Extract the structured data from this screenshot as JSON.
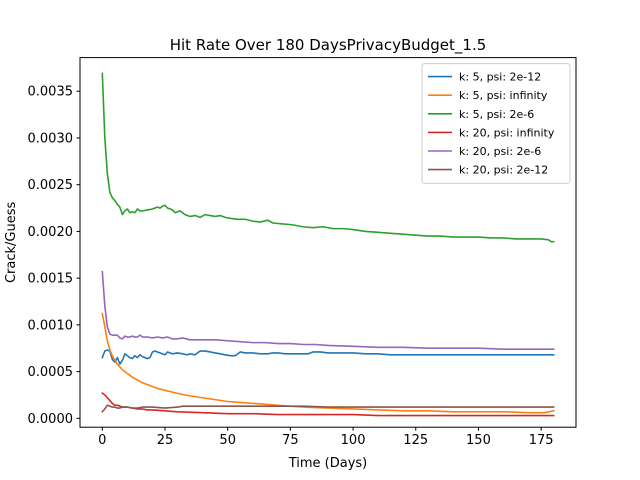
{
  "chart_data": {
    "type": "line",
    "title": "Hit Rate Over 180 DaysPrivacyBudget_1.5",
    "xlabel": "Time (Days)",
    "ylabel": "Crack/Guess",
    "xlim": [
      -8.9,
      188.9
    ],
    "ylim": [
      -9.5e-05,
      0.00386
    ],
    "xticks": [
      0,
      25,
      50,
      75,
      100,
      125,
      150,
      175
    ],
    "xtick_labels": [
      "0",
      "25",
      "50",
      "75",
      "100",
      "125",
      "150",
      "175"
    ],
    "yticks": [
      0.0,
      0.0005,
      0.001,
      0.0015,
      0.002,
      0.0025,
      0.003,
      0.0035
    ],
    "ytick_labels": [
      "0.0000",
      "0.0005",
      "0.0010",
      "0.0015",
      "0.0020",
      "0.0025",
      "0.0030",
      "0.0035"
    ],
    "grid": false,
    "legend_position": "top-right",
    "series": [
      {
        "name": "k: 5, psi: 2e-12",
        "color": "#1f77b4",
        "points": [
          [
            0,
            0.00065
          ],
          [
            1,
            0.00072
          ],
          [
            2,
            0.00073
          ],
          [
            3,
            0.00072
          ],
          [
            4,
            0.00063
          ],
          [
            5,
            0.0006
          ],
          [
            6,
            0.00065
          ],
          [
            7,
            0.00058
          ],
          [
            8,
            0.00062
          ],
          [
            9,
            0.00069
          ],
          [
            10,
            0.00067
          ],
          [
            11,
            0.00065
          ],
          [
            12,
            0.00064
          ],
          [
            13,
            0.00067
          ],
          [
            14,
            0.00065
          ],
          [
            15,
            0.00068
          ],
          [
            16,
            0.00066
          ],
          [
            17,
            0.00065
          ],
          [
            18,
            0.00064
          ],
          [
            19,
            0.00065
          ],
          [
            20,
            0.00071
          ],
          [
            21,
            0.00072
          ],
          [
            22,
            0.00071
          ],
          [
            23,
            0.0007
          ],
          [
            24,
            0.00069
          ],
          [
            25,
            0.00068
          ],
          [
            26,
            0.00071
          ],
          [
            27,
            0.0007
          ],
          [
            28,
            0.00069
          ],
          [
            30,
            0.0007
          ],
          [
            32,
            0.00069
          ],
          [
            34,
            0.00068
          ],
          [
            35,
            0.00069
          ],
          [
            37,
            0.00068
          ],
          [
            39,
            0.00072
          ],
          [
            41,
            0.00072
          ],
          [
            43,
            0.00071
          ],
          [
            45,
            0.0007
          ],
          [
            47,
            0.00069
          ],
          [
            49,
            0.00068
          ],
          [
            51,
            0.00067
          ],
          [
            53,
            0.00067
          ],
          [
            55,
            0.00071
          ],
          [
            57,
            0.0007
          ],
          [
            60,
            0.0007
          ],
          [
            63,
            0.00069
          ],
          [
            66,
            0.00069
          ],
          [
            68,
            0.0007
          ],
          [
            70,
            0.0007
          ],
          [
            73,
            0.00069
          ],
          [
            76,
            0.00069
          ],
          [
            79,
            0.00069
          ],
          [
            82,
            0.00069
          ],
          [
            84,
            0.00071
          ],
          [
            87,
            0.00071
          ],
          [
            90,
            0.0007
          ],
          [
            95,
            0.0007
          ],
          [
            100,
            0.0007
          ],
          [
            105,
            0.00069
          ],
          [
            110,
            0.00069
          ],
          [
            115,
            0.00068
          ],
          [
            120,
            0.00068
          ],
          [
            125,
            0.00068
          ],
          [
            130,
            0.00068
          ],
          [
            140,
            0.00068
          ],
          [
            150,
            0.00068
          ],
          [
            160,
            0.00068
          ],
          [
            170,
            0.00068
          ],
          [
            180,
            0.00068
          ]
        ]
      },
      {
        "name": "k: 5, psi: infinity",
        "color": "#ff7f0e",
        "points": [
          [
            0,
            0.00112
          ],
          [
            1,
            0.00098
          ],
          [
            2,
            0.00083
          ],
          [
            3,
            0.00073
          ],
          [
            4,
            0.00067
          ],
          [
            5,
            0.00062
          ],
          [
            6,
            0.00058
          ],
          [
            7,
            0.00055
          ],
          [
            8,
            0.00052
          ],
          [
            10,
            0.00048
          ],
          [
            12,
            0.00044
          ],
          [
            14,
            0.00041
          ],
          [
            16,
            0.00038
          ],
          [
            18,
            0.00036
          ],
          [
            20,
            0.00034
          ],
          [
            22,
            0.00032
          ],
          [
            25,
            0.0003
          ],
          [
            28,
            0.00028
          ],
          [
            31,
            0.00026
          ],
          [
            35,
            0.00024
          ],
          [
            40,
            0.00022
          ],
          [
            45,
            0.0002
          ],
          [
            50,
            0.00018
          ],
          [
            55,
            0.00017
          ],
          [
            60,
            0.00016
          ],
          [
            65,
            0.00015
          ],
          [
            70,
            0.00014
          ],
          [
            75,
            0.00013
          ],
          [
            80,
            0.00012
          ],
          [
            90,
            0.00011
          ],
          [
            100,
            0.0001
          ],
          [
            110,
            9e-05
          ],
          [
            120,
            8e-05
          ],
          [
            130,
            8e-05
          ],
          [
            140,
            7e-05
          ],
          [
            150,
            7e-05
          ],
          [
            160,
            7e-05
          ],
          [
            170,
            6e-05
          ],
          [
            176,
            6e-05
          ],
          [
            178,
            7e-05
          ],
          [
            180,
            8e-05
          ]
        ]
      },
      {
        "name": "k: 5, psi: 2e-6",
        "color": "#2ca02c",
        "points": [
          [
            0,
            0.00369
          ],
          [
            1,
            0.003
          ],
          [
            2,
            0.00262
          ],
          [
            3,
            0.00242
          ],
          [
            4,
            0.00236
          ],
          [
            5,
            0.00233
          ],
          [
            6,
            0.00229
          ],
          [
            7,
            0.00226
          ],
          [
            8,
            0.00218
          ],
          [
            9,
            0.00222
          ],
          [
            10,
            0.00224
          ],
          [
            11,
            0.0022
          ],
          [
            12,
            0.00221
          ],
          [
            13,
            0.0022
          ],
          [
            14,
            0.00224
          ],
          [
            15,
            0.00222
          ],
          [
            16,
            0.00222
          ],
          [
            18,
            0.00223
          ],
          [
            20,
            0.00224
          ],
          [
            22,
            0.00226
          ],
          [
            23,
            0.00225
          ],
          [
            24,
            0.00227
          ],
          [
            25,
            0.00228
          ],
          [
            26,
            0.00225
          ],
          [
            28,
            0.00223
          ],
          [
            29,
            0.0022
          ],
          [
            31,
            0.00222
          ],
          [
            33,
            0.00218
          ],
          [
            35,
            0.00216
          ],
          [
            37,
            0.00217
          ],
          [
            39,
            0.00215
          ],
          [
            41,
            0.00218
          ],
          [
            43,
            0.00217
          ],
          [
            45,
            0.00216
          ],
          [
            47,
            0.00217
          ],
          [
            49,
            0.00215
          ],
          [
            51,
            0.00214
          ],
          [
            54,
            0.00213
          ],
          [
            57,
            0.00213
          ],
          [
            60,
            0.00211
          ],
          [
            63,
            0.0021
          ],
          [
            66,
            0.00212
          ],
          [
            68,
            0.00209
          ],
          [
            72,
            0.00208
          ],
          [
            76,
            0.00207
          ],
          [
            80,
            0.00205
          ],
          [
            84,
            0.00204
          ],
          [
            88,
            0.00205
          ],
          [
            92,
            0.00203
          ],
          [
            96,
            0.00203
          ],
          [
            100,
            0.00202
          ],
          [
            105,
            0.002
          ],
          [
            110,
            0.00199
          ],
          [
            115,
            0.00198
          ],
          [
            120,
            0.00197
          ],
          [
            125,
            0.00196
          ],
          [
            130,
            0.00195
          ],
          [
            135,
            0.00195
          ],
          [
            140,
            0.00194
          ],
          [
            145,
            0.00194
          ],
          [
            150,
            0.00194
          ],
          [
            155,
            0.00193
          ],
          [
            160,
            0.00193
          ],
          [
            165,
            0.00192
          ],
          [
            170,
            0.00192
          ],
          [
            175,
            0.00192
          ],
          [
            178,
            0.00191
          ],
          [
            179,
            0.00189
          ],
          [
            180,
            0.00189
          ]
        ]
      },
      {
        "name": "k: 20, psi: infinity",
        "color": "#d62728",
        "points": [
          [
            0,
            0.00027
          ],
          [
            1,
            0.00025
          ],
          [
            2,
            0.00022
          ],
          [
            3,
            0.00019
          ],
          [
            4,
            0.00016
          ],
          [
            5,
            0.00014
          ],
          [
            6,
            0.00014
          ],
          [
            7,
            0.00013
          ],
          [
            8,
            0.00012
          ],
          [
            10,
            0.00012
          ],
          [
            12,
            0.00011
          ],
          [
            14,
            0.0001
          ],
          [
            16,
            0.0001
          ],
          [
            18,
            9e-05
          ],
          [
            20,
            9e-05
          ],
          [
            25,
            8e-05
          ],
          [
            30,
            7e-05
          ],
          [
            40,
            6e-05
          ],
          [
            50,
            5e-05
          ],
          [
            60,
            5e-05
          ],
          [
            70,
            4e-05
          ],
          [
            80,
            4e-05
          ],
          [
            90,
            4e-05
          ],
          [
            100,
            4e-05
          ],
          [
            110,
            3e-05
          ],
          [
            120,
            3e-05
          ],
          [
            130,
            3e-05
          ],
          [
            140,
            3e-05
          ],
          [
            150,
            3e-05
          ],
          [
            160,
            3e-05
          ],
          [
            170,
            3e-05
          ],
          [
            180,
            3e-05
          ]
        ]
      },
      {
        "name": "k: 20, psi: 2e-6",
        "color": "#9467bd",
        "points": [
          [
            0,
            0.00157
          ],
          [
            1,
            0.0012
          ],
          [
            2,
            0.00098
          ],
          [
            3,
            0.0009
          ],
          [
            4,
            0.00089
          ],
          [
            5,
            0.00089
          ],
          [
            6,
            0.00089
          ],
          [
            7,
            0.00086
          ],
          [
            8,
            0.00085
          ],
          [
            9,
            0.00088
          ],
          [
            10,
            0.00087
          ],
          [
            11,
            0.00087
          ],
          [
            12,
            0.00088
          ],
          [
            13,
            0.00087
          ],
          [
            14,
            0.00087
          ],
          [
            15,
            0.00089
          ],
          [
            16,
            0.00087
          ],
          [
            18,
            0.00087
          ],
          [
            20,
            0.00086
          ],
          [
            22,
            0.00087
          ],
          [
            24,
            0.00086
          ],
          [
            26,
            0.00087
          ],
          [
            28,
            0.00085
          ],
          [
            30,
            0.00085
          ],
          [
            32,
            0.00086
          ],
          [
            35,
            0.00084
          ],
          [
            38,
            0.00084
          ],
          [
            41,
            0.00084
          ],
          [
            45,
            0.00084
          ],
          [
            50,
            0.00083
          ],
          [
            55,
            0.00082
          ],
          [
            60,
            0.00081
          ],
          [
            65,
            0.00081
          ],
          [
            70,
            0.0008
          ],
          [
            75,
            0.0008
          ],
          [
            80,
            0.00079
          ],
          [
            85,
            0.00079
          ],
          [
            90,
            0.00078
          ],
          [
            100,
            0.00077
          ],
          [
            110,
            0.00076
          ],
          [
            120,
            0.00076
          ],
          [
            130,
            0.00075
          ],
          [
            140,
            0.00075
          ],
          [
            150,
            0.00075
          ],
          [
            160,
            0.00074
          ],
          [
            170,
            0.00074
          ],
          [
            180,
            0.00074
          ]
        ]
      },
      {
        "name": "k: 20, psi: 2e-12",
        "color": "#8c564b",
        "points": [
          [
            0,
            7e-05
          ],
          [
            1,
            0.0001
          ],
          [
            2,
            0.00014
          ],
          [
            3,
            0.00013
          ],
          [
            4,
            0.00012
          ],
          [
            5,
            0.00012
          ],
          [
            6,
            0.00011
          ],
          [
            7,
            0.00011
          ],
          [
            8,
            0.00012
          ],
          [
            10,
            0.00012
          ],
          [
            12,
            0.00011
          ],
          [
            14,
            0.00011
          ],
          [
            16,
            0.00012
          ],
          [
            20,
            0.00012
          ],
          [
            25,
            0.00011
          ],
          [
            30,
            0.00012
          ],
          [
            32,
            0.00013
          ],
          [
            35,
            0.00013
          ],
          [
            40,
            0.00013
          ],
          [
            50,
            0.00013
          ],
          [
            60,
            0.00013
          ],
          [
            70,
            0.00013
          ],
          [
            80,
            0.00013
          ],
          [
            90,
            0.00012
          ],
          [
            100,
            0.00012
          ],
          [
            120,
            0.00012
          ],
          [
            140,
            0.00012
          ],
          [
            160,
            0.00012
          ],
          [
            180,
            0.00012
          ]
        ]
      }
    ]
  }
}
